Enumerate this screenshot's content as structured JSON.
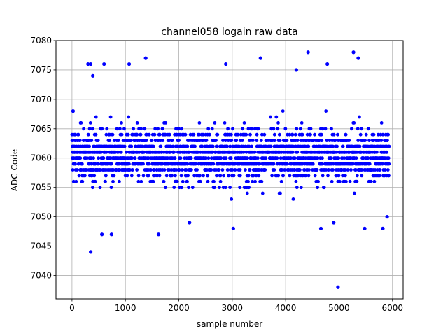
{
  "chart_data": {
    "type": "scatter",
    "title": "channel058 logain raw data",
    "xlabel": "sample number",
    "ylabel": "ADC Code",
    "xlim": [
      -300,
      6200
    ],
    "ylim": [
      7036,
      7080
    ],
    "xticks": [
      0,
      1000,
      2000,
      3000,
      4000,
      5000,
      6000
    ],
    "yticks": [
      7040,
      7045,
      7050,
      7055,
      7060,
      7065,
      7070,
      7075,
      7080
    ],
    "grid": true,
    "marker_color": "#0000ff",
    "series": [
      {
        "sample_count": 5940,
        "band_min": 7053,
        "band_max": 7068,
        "outliers": [
          {
            "x": 20,
            "y": 7068
          },
          {
            "x": 300,
            "y": 7076
          },
          {
            "x": 350,
            "y": 7076
          },
          {
            "x": 350,
            "y": 7044
          },
          {
            "x": 390,
            "y": 7074
          },
          {
            "x": 600,
            "y": 7076
          },
          {
            "x": 560,
            "y": 7047
          },
          {
            "x": 740,
            "y": 7047
          },
          {
            "x": 1070,
            "y": 7076
          },
          {
            "x": 1380,
            "y": 7077
          },
          {
            "x": 1620,
            "y": 7047
          },
          {
            "x": 2200,
            "y": 7049
          },
          {
            "x": 2880,
            "y": 7076
          },
          {
            "x": 3020,
            "y": 7048
          },
          {
            "x": 3530,
            "y": 7077
          },
          {
            "x": 4200,
            "y": 7075
          },
          {
            "x": 4420,
            "y": 7078
          },
          {
            "x": 4780,
            "y": 7076
          },
          {
            "x": 4660,
            "y": 7048
          },
          {
            "x": 4900,
            "y": 7049
          },
          {
            "x": 4980,
            "y": 7038
          },
          {
            "x": 5270,
            "y": 7078
          },
          {
            "x": 5360,
            "y": 7077
          },
          {
            "x": 5480,
            "y": 7048
          },
          {
            "x": 5820,
            "y": 7048
          },
          {
            "x": 5900,
            "y": 7050
          }
        ]
      }
    ]
  }
}
